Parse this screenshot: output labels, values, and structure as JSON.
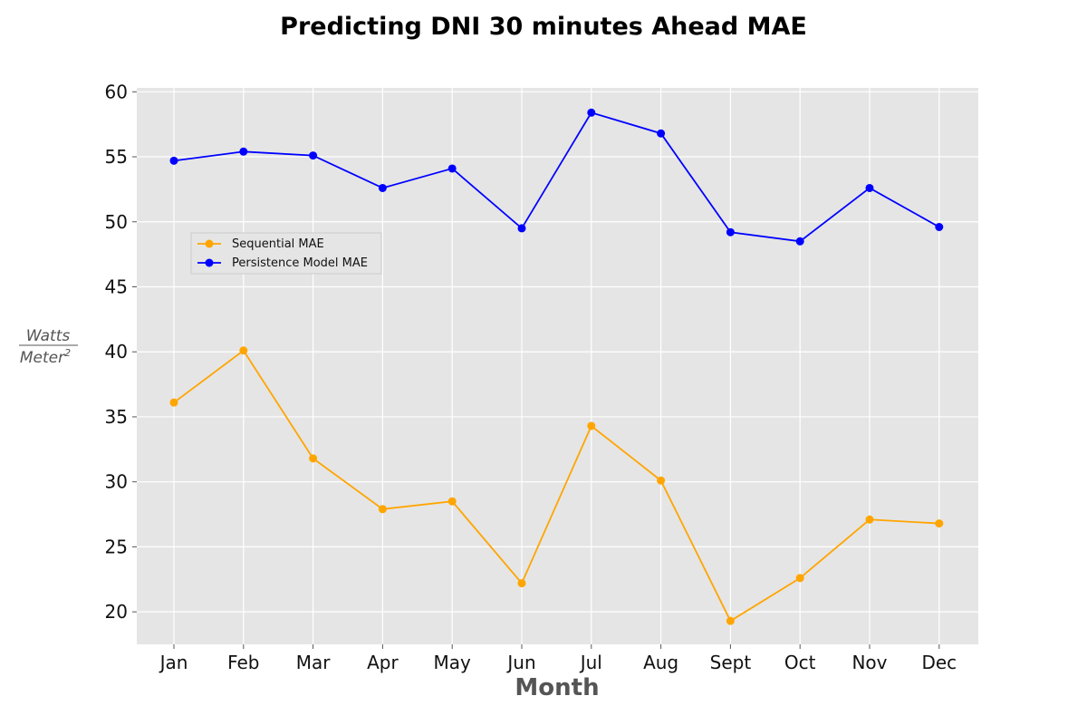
{
  "chart_data": {
    "type": "line",
    "title": "Predicting DNI 30 minutes Ahead MAE",
    "xlabel": "Month",
    "ylabel": {
      "numerator": "Watts",
      "denominator": "Meter",
      "denominator_superscript": "2"
    },
    "categories": [
      "Jan",
      "Feb",
      "Mar",
      "Apr",
      "May",
      "Jun",
      "Jul",
      "Aug",
      "Sept",
      "Oct",
      "Nov",
      "Dec"
    ],
    "ylim": [
      17.5,
      60.3
    ],
    "yticks": [
      20,
      25,
      30,
      35,
      40,
      45,
      50,
      55,
      60
    ],
    "grid": true,
    "legend_position": "upper-left",
    "series": [
      {
        "name": "Sequential MAE",
        "color": "#ffa500",
        "values": [
          36.1,
          40.1,
          31.8,
          27.9,
          28.5,
          22.2,
          34.3,
          30.1,
          19.3,
          22.6,
          27.1,
          26.8
        ]
      },
      {
        "name": "Persistence Model MAE",
        "color": "#0000ff",
        "values": [
          54.7,
          55.4,
          55.1,
          52.6,
          54.1,
          49.5,
          58.4,
          56.8,
          49.2,
          48.5,
          52.6,
          49.6
        ]
      }
    ]
  }
}
